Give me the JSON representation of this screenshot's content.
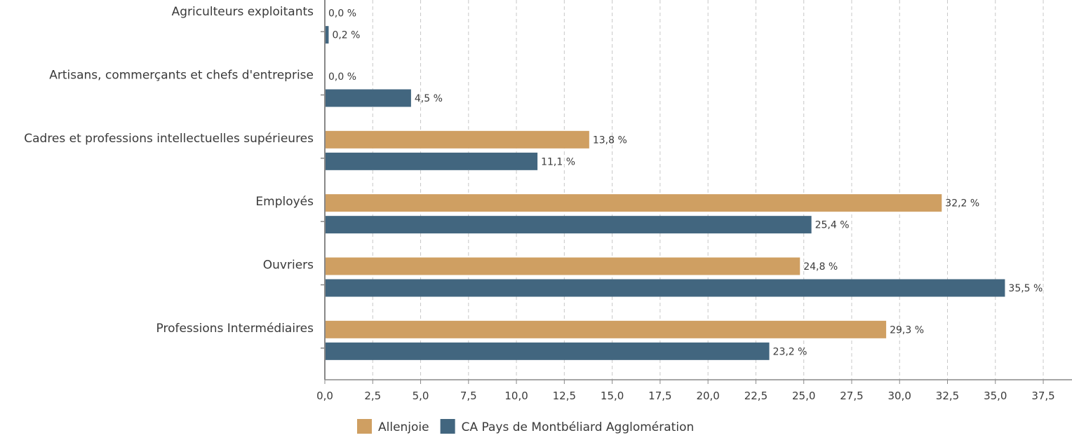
{
  "chart_data": {
    "type": "bar",
    "orientation": "horizontal",
    "categories": [
      "Agriculteurs exploitants",
      "Artisans, commerçants et chefs d'entreprise",
      "Cadres et professions intellectuelles supérieures",
      "Employés",
      "Ouvriers",
      "Professions Intermédiaires"
    ],
    "series": [
      {
        "name": "Allenjoie",
        "color": "#cf9f62",
        "values": [
          0.0,
          0.0,
          13.8,
          32.2,
          24.8,
          29.3
        ],
        "labels": [
          "0,0 %",
          "0,0 %",
          "13,8 %",
          "32,2 %",
          "24,8 %",
          "29,3 %"
        ]
      },
      {
        "name": "CA Pays de Montbéliard Agglomération",
        "color": "#42667f",
        "values": [
          0.2,
          4.5,
          11.1,
          25.4,
          35.5,
          23.2
        ],
        "labels": [
          "0,2 %",
          "4,5 %",
          "11,1 %",
          "25,4 %",
          "35,5 %",
          "23,2 %"
        ]
      }
    ],
    "xlim": [
      0,
      39
    ],
    "xticks": [
      0,
      2.5,
      5,
      7.5,
      10,
      12.5,
      15,
      17.5,
      20,
      22.5,
      25,
      27.5,
      30,
      32.5,
      35,
      37.5
    ],
    "xtick_labels": [
      "0,0",
      "2,5",
      "5,0",
      "7,5",
      "10,0",
      "12,5",
      "15,0",
      "17,5",
      "20,0",
      "22,5",
      "25,0",
      "27,5",
      "30,0",
      "32,5",
      "35,0",
      "37,5"
    ],
    "title": "",
    "xlabel": "",
    "ylabel": "",
    "grid": "vertical dashed",
    "legend_position": "bottom"
  }
}
